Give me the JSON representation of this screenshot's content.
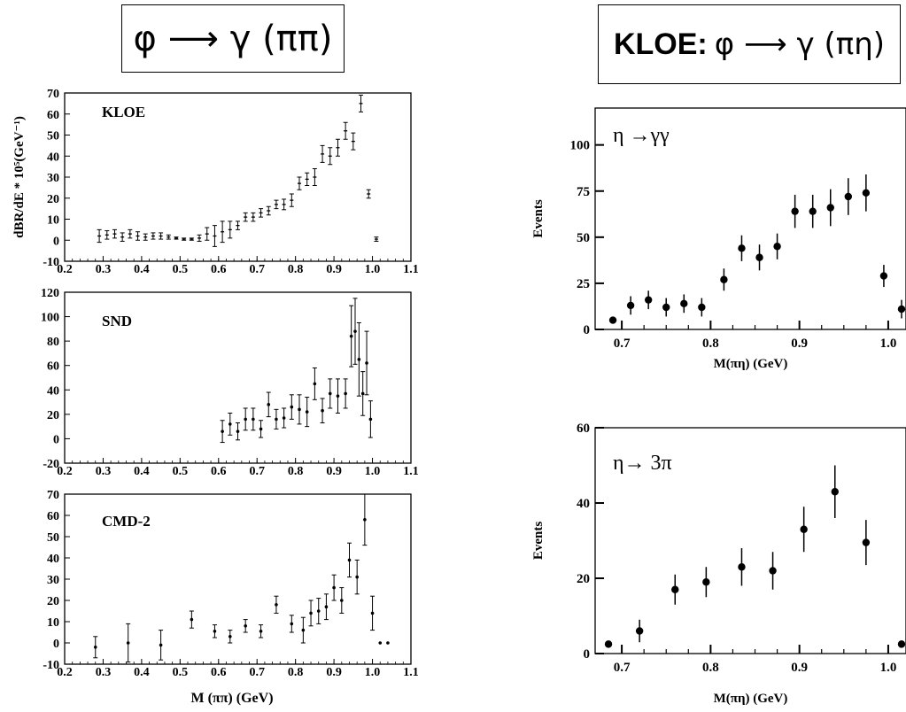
{
  "titles": {
    "left": "φ ⟶ γ (ππ)",
    "right_prefix": "KLOE:",
    "right": "φ ⟶ γ (πη)"
  },
  "left_ylabel": "dBR/dE * 10⁵(GeV⁻¹)",
  "left_xlabel": "M (ππ) (GeV)",
  "chart_data": [
    {
      "type": "scatter",
      "label": "KLOE",
      "xlim": [
        0.2,
        1.1
      ],
      "ylim": [
        -10,
        70
      ],
      "xticks": [
        "0.2",
        "0.3",
        "0.4",
        "0.5",
        "0.6",
        "0.7",
        "0.8",
        "0.9",
        "1.0",
        "1.1"
      ],
      "yticks": [
        "-10",
        "0",
        "10",
        "20",
        "30",
        "40",
        "50",
        "60",
        "70"
      ],
      "points": [
        {
          "x": 0.29,
          "y": 2,
          "e": 3
        },
        {
          "x": 0.31,
          "y": 2.5,
          "e": 2
        },
        {
          "x": 0.33,
          "y": 3,
          "e": 2
        },
        {
          "x": 0.35,
          "y": 1.5,
          "e": 2
        },
        {
          "x": 0.37,
          "y": 3,
          "e": 2
        },
        {
          "x": 0.39,
          "y": 2,
          "e": 2
        },
        {
          "x": 0.41,
          "y": 1.5,
          "e": 1.5
        },
        {
          "x": 0.43,
          "y": 2,
          "e": 1.5
        },
        {
          "x": 0.45,
          "y": 2,
          "e": 1.5
        },
        {
          "x": 0.47,
          "y": 1.5,
          "e": 1
        },
        {
          "x": 0.49,
          "y": 1,
          "e": 0.5
        },
        {
          "x": 0.51,
          "y": 0.5,
          "e": 0.5
        },
        {
          "x": 0.53,
          "y": 0.5,
          "e": 0.5
        },
        {
          "x": 0.55,
          "y": 1,
          "e": 1.5
        },
        {
          "x": 0.57,
          "y": 3,
          "e": 3
        },
        {
          "x": 0.59,
          "y": 2,
          "e": 5
        },
        {
          "x": 0.61,
          "y": 4,
          "e": 5
        },
        {
          "x": 0.63,
          "y": 5,
          "e": 4
        },
        {
          "x": 0.65,
          "y": 7,
          "e": 2
        },
        {
          "x": 0.67,
          "y": 11,
          "e": 2
        },
        {
          "x": 0.69,
          "y": 11,
          "e": 2
        },
        {
          "x": 0.71,
          "y": 13,
          "e": 2
        },
        {
          "x": 0.73,
          "y": 14,
          "e": 2
        },
        {
          "x": 0.75,
          "y": 17,
          "e": 2
        },
        {
          "x": 0.77,
          "y": 17,
          "e": 2.5
        },
        {
          "x": 0.79,
          "y": 19,
          "e": 3
        },
        {
          "x": 0.81,
          "y": 27,
          "e": 3
        },
        {
          "x": 0.83,
          "y": 29,
          "e": 3
        },
        {
          "x": 0.85,
          "y": 30,
          "e": 4
        },
        {
          "x": 0.87,
          "y": 41,
          "e": 4
        },
        {
          "x": 0.89,
          "y": 40,
          "e": 4
        },
        {
          "x": 0.91,
          "y": 44,
          "e": 4
        },
        {
          "x": 0.93,
          "y": 52,
          "e": 4
        },
        {
          "x": 0.95,
          "y": 47,
          "e": 4
        },
        {
          "x": 0.97,
          "y": 65,
          "e": 4
        },
        {
          "x": 0.99,
          "y": 22,
          "e": 2
        },
        {
          "x": 1.01,
          "y": 0.5,
          "e": 1
        }
      ]
    },
    {
      "type": "scatter",
      "label": "SND",
      "xlim": [
        0.2,
        1.1
      ],
      "ylim": [
        -20,
        120
      ],
      "xticks": [
        "0.2",
        "0.3",
        "0.4",
        "0.5",
        "0.6",
        "0.7",
        "0.8",
        "0.9",
        "1.0",
        "1.1"
      ],
      "yticks": [
        "-20",
        "0",
        "20",
        "40",
        "60",
        "80",
        "100",
        "120"
      ],
      "points": [
        {
          "x": 0.61,
          "y": 6,
          "e": 9
        },
        {
          "x": 0.63,
          "y": 12,
          "e": 9
        },
        {
          "x": 0.65,
          "y": 6,
          "e": 7
        },
        {
          "x": 0.67,
          "y": 16,
          "e": 9
        },
        {
          "x": 0.69,
          "y": 16,
          "e": 9
        },
        {
          "x": 0.71,
          "y": 8,
          "e": 7
        },
        {
          "x": 0.73,
          "y": 28,
          "e": 10
        },
        {
          "x": 0.75,
          "y": 16,
          "e": 8
        },
        {
          "x": 0.77,
          "y": 17,
          "e": 8
        },
        {
          "x": 0.79,
          "y": 26,
          "e": 10
        },
        {
          "x": 0.81,
          "y": 24,
          "e": 12
        },
        {
          "x": 0.83,
          "y": 22,
          "e": 12
        },
        {
          "x": 0.85,
          "y": 45,
          "e": 13
        },
        {
          "x": 0.87,
          "y": 23,
          "e": 10
        },
        {
          "x": 0.89,
          "y": 37,
          "e": 12
        },
        {
          "x": 0.91,
          "y": 35,
          "e": 14
        },
        {
          "x": 0.93,
          "y": 37,
          "e": 12
        },
        {
          "x": 0.945,
          "y": 84,
          "e": 25
        },
        {
          "x": 0.955,
          "y": 88,
          "e": 27
        },
        {
          "x": 0.965,
          "y": 65,
          "e": 30
        },
        {
          "x": 0.975,
          "y": 37,
          "e": 18
        },
        {
          "x": 0.985,
          "y": 62,
          "e": 26
        },
        {
          "x": 0.995,
          "y": 16,
          "e": 15
        }
      ]
    },
    {
      "type": "scatter",
      "label": "CMD-2",
      "xlim": [
        0.2,
        1.1
      ],
      "ylim": [
        -10,
        70
      ],
      "xticks": [
        "0.2",
        "0.3",
        "0.4",
        "0.5",
        "0.6",
        "0.7",
        "0.8",
        "0.9",
        "1.0",
        "1.1"
      ],
      "yticks": [
        "-10",
        "0",
        "10",
        "20",
        "30",
        "40",
        "50",
        "60",
        "70"
      ],
      "points": [
        {
          "x": 0.28,
          "y": -2,
          "e": 5
        },
        {
          "x": 0.365,
          "y": 0,
          "e": 9
        },
        {
          "x": 0.45,
          "y": -1,
          "e": 7
        },
        {
          "x": 0.53,
          "y": 11,
          "e": 4
        },
        {
          "x": 0.59,
          "y": 5.5,
          "e": 3
        },
        {
          "x": 0.63,
          "y": 3,
          "e": 3
        },
        {
          "x": 0.67,
          "y": 8,
          "e": 3
        },
        {
          "x": 0.71,
          "y": 5.5,
          "e": 3
        },
        {
          "x": 0.75,
          "y": 18,
          "e": 4
        },
        {
          "x": 0.79,
          "y": 9,
          "e": 4
        },
        {
          "x": 0.82,
          "y": 6,
          "e": 6
        },
        {
          "x": 0.84,
          "y": 14,
          "e": 6
        },
        {
          "x": 0.86,
          "y": 15,
          "e": 6
        },
        {
          "x": 0.88,
          "y": 17,
          "e": 6
        },
        {
          "x": 0.9,
          "y": 26,
          "e": 6
        },
        {
          "x": 0.92,
          "y": 20,
          "e": 6
        },
        {
          "x": 0.94,
          "y": 39,
          "e": 8
        },
        {
          "x": 0.96,
          "y": 31,
          "e": 8
        },
        {
          "x": 0.98,
          "y": 58,
          "e": 12
        },
        {
          "x": 1.0,
          "y": 14,
          "e": 8
        },
        {
          "x": 1.02,
          "y": 0,
          "e": 0
        },
        {
          "x": 1.04,
          "y": 0,
          "e": 0
        }
      ]
    },
    {
      "type": "scatter",
      "label": "η →γγ",
      "xlabel": "M(πη) (GeV)",
      "ylabel": "Events",
      "xlim": [
        0.67,
        1.02
      ],
      "ylim": [
        0,
        120
      ],
      "xticks": [
        "0.7",
        "0.8",
        "0.9",
        "1.0"
      ],
      "yticks": [
        "0",
        "25",
        "50",
        "75",
        "100"
      ],
      "points": [
        {
          "x": 0.69,
          "y": 5,
          "e": 0
        },
        {
          "x": 0.71,
          "y": 13,
          "e": 5
        },
        {
          "x": 0.73,
          "y": 16,
          "e": 5
        },
        {
          "x": 0.75,
          "y": 12,
          "e": 5
        },
        {
          "x": 0.77,
          "y": 14,
          "e": 5
        },
        {
          "x": 0.79,
          "y": 12,
          "e": 5
        },
        {
          "x": 0.815,
          "y": 27,
          "e": 6
        },
        {
          "x": 0.835,
          "y": 44,
          "e": 7
        },
        {
          "x": 0.855,
          "y": 39,
          "e": 7
        },
        {
          "x": 0.875,
          "y": 45,
          "e": 7
        },
        {
          "x": 0.895,
          "y": 64,
          "e": 9
        },
        {
          "x": 0.915,
          "y": 64,
          "e": 9
        },
        {
          "x": 0.935,
          "y": 66,
          "e": 10
        },
        {
          "x": 0.955,
          "y": 72,
          "e": 10
        },
        {
          "x": 0.975,
          "y": 74,
          "e": 10
        },
        {
          "x": 0.995,
          "y": 29,
          "e": 6
        },
        {
          "x": 1.015,
          "y": 11,
          "e": 5
        }
      ]
    },
    {
      "type": "scatter",
      "label": "η→ 3π",
      "xlabel": "M(πη) (GeV)",
      "ylabel": "Events",
      "xlim": [
        0.67,
        1.02
      ],
      "ylim": [
        0,
        60
      ],
      "xticks": [
        "0.7",
        "0.8",
        "0.9",
        "1.0"
      ],
      "yticks": [
        "0",
        "20",
        "40",
        "60"
      ],
      "points": [
        {
          "x": 0.685,
          "y": 2.5,
          "e": 0
        },
        {
          "x": 0.72,
          "y": 6,
          "e": 3
        },
        {
          "x": 0.76,
          "y": 17,
          "e": 4
        },
        {
          "x": 0.795,
          "y": 19,
          "e": 4
        },
        {
          "x": 0.835,
          "y": 23,
          "e": 5
        },
        {
          "x": 0.87,
          "y": 22,
          "e": 5
        },
        {
          "x": 0.905,
          "y": 33,
          "e": 6
        },
        {
          "x": 0.94,
          "y": 43,
          "e": 7
        },
        {
          "x": 0.975,
          "y": 29.5,
          "e": 6
        },
        {
          "x": 1.015,
          "y": 2.5,
          "e": 0
        }
      ]
    }
  ]
}
